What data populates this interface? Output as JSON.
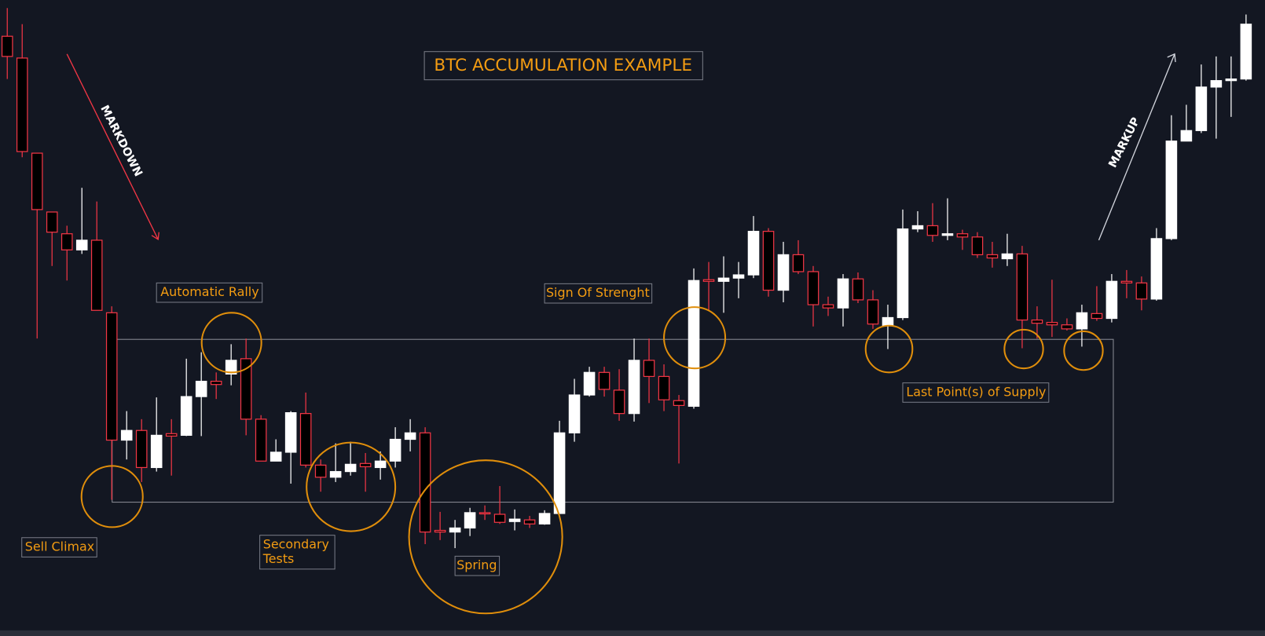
{
  "chart_data": {
    "type": "candlestick",
    "title": "BTC ACCUMULATION EXAMPLE",
    "annotations": {
      "markdown": "MARKDOWN",
      "markup": "MARKUP",
      "automatic_rally": "Automatic Rally",
      "sign_of_strength": "Sign Of Strenght",
      "sell_climax": "Sell Climax",
      "secondary_tests": [
        "Secondary",
        "Tests"
      ],
      "spring": "Spring",
      "last_points_of_supply": "Last Point(s) of Supply"
    },
    "ylim": [
      0,
      789
    ],
    "up_color": "#ffffff",
    "down_color": "#000000",
    "down_border": "#f23645",
    "open": [
      744,
      717,
      599,
      526,
      499,
      479,
      491,
      401,
      243,
      255,
      209,
      251,
      249,
      297,
      316,
      325,
      344,
      269,
      217,
      228,
      276,
      212,
      197,
      204,
      214,
      209,
      217,
      244,
      252,
      131,
      129,
      134,
      153,
      151,
      142,
      144,
      139,
      152,
      252,
      299,
      327,
      305,
      276,
      342,
      322,
      292,
      285,
      442,
      440,
      444,
      448,
      502,
      429,
      473,
      452,
      411,
      407,
      443,
      417,
      385,
      395,
      505,
      509,
      497,
      499,
      495,
      473,
      468,
      474,
      392,
      389,
      386,
      381,
      400,
      394,
      440,
      438,
      418,
      493,
      614,
      627,
      681,
      689,
      691
    ],
    "high": [
      779,
      759,
      599,
      526,
      509,
      556,
      539,
      409,
      279,
      269,
      296,
      269,
      344,
      352,
      327,
      362,
      369,
      274,
      244,
      279,
      302,
      219,
      239,
      241,
      227,
      229,
      259,
      269,
      259,
      154,
      144,
      159,
      162,
      186,
      157,
      149,
      156,
      267,
      319,
      334,
      334,
      331,
      369,
      369,
      337,
      299,
      456,
      464,
      471,
      464,
      521,
      506,
      489,
      491,
      459,
      421,
      449,
      451,
      429,
      411,
      529,
      527,
      537,
      543,
      504,
      501,
      489,
      499,
      484,
      409,
      442,
      394,
      411,
      434,
      449,
      454,
      446,
      506,
      646,
      659,
      709,
      719,
      719,
      771
    ],
    "low": [
      691,
      594,
      369,
      459,
      441,
      474,
      404,
      169,
      219,
      191,
      204,
      199,
      248,
      248,
      294,
      311,
      249,
      217,
      217,
      189,
      209,
      179,
      191,
      199,
      179,
      194,
      209,
      229,
      114,
      119,
      109,
      124,
      144,
      139,
      131,
      134,
      138,
      152,
      241,
      297,
      297,
      267,
      266,
      289,
      279,
      214,
      282,
      404,
      401,
      419,
      444,
      421,
      414,
      449,
      384,
      397,
      384,
      413,
      381,
      356,
      392,
      501,
      489,
      491,
      479,
      469,
      457,
      459,
      357,
      369,
      371,
      379,
      359,
      391,
      389,
      419,
      404,
      416,
      491,
      614,
      624,
      617,
      644,
      689
    ],
    "close": [
      719,
      601,
      529,
      501,
      479,
      491,
      404,
      243,
      255,
      209,
      249,
      248,
      297,
      316,
      312,
      342,
      269,
      217,
      228,
      277,
      212,
      197,
      204,
      213,
      210,
      217,
      244,
      252,
      129,
      129,
      134,
      153,
      152,
      141,
      145,
      139,
      152,
      252,
      299,
      327,
      306,
      276,
      342,
      322,
      293,
      286,
      441,
      440,
      444,
      448,
      502,
      429,
      473,
      452,
      411,
      407,
      443,
      417,
      387,
      395,
      505,
      509,
      497,
      499,
      495,
      473,
      469,
      474,
      392,
      388,
      386,
      381,
      401,
      394,
      440,
      438,
      418,
      493,
      614,
      627,
      681,
      689,
      691,
      759
    ]
  }
}
